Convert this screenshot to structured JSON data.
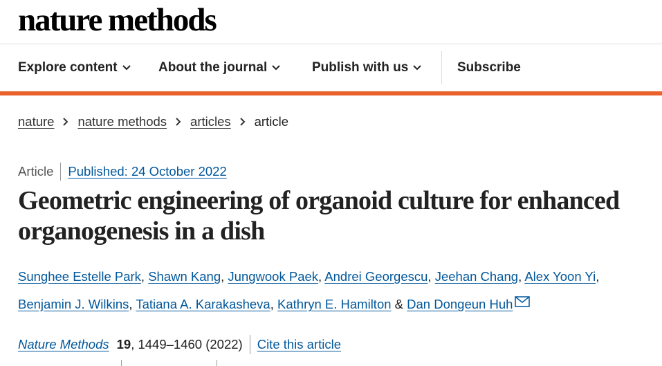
{
  "header": {
    "logo": "nature methods",
    "nav": [
      "Explore content",
      "About the journal",
      "Publish with us"
    ],
    "subscribe": "Subscribe"
  },
  "breadcrumbs": [
    "nature",
    "nature methods",
    "articles",
    "article"
  ],
  "article": {
    "type": "Article",
    "published": "Published: 24 October 2022",
    "title": "Geometric engineering of organoid culture for enhanced organogenesis in a dish",
    "authors": [
      "Sunghee Estelle Park",
      "Shawn Kang",
      "Jungwook Paek",
      "Andrei Georgescu",
      "Jeehan Chang",
      "Alex Yoon Yi",
      "Benjamin J. Wilkins",
      "Tatiana A. Karakasheva",
      "Kathryn E. Hamilton",
      "Dan Dongeun Huh"
    ],
    "author_separator": ",",
    "last_separator": "&",
    "citation": {
      "journal": "Nature Methods",
      "volume": "19",
      "pages": ", 1449–1460 (2022)",
      "cite": "Cite this article"
    }
  }
}
